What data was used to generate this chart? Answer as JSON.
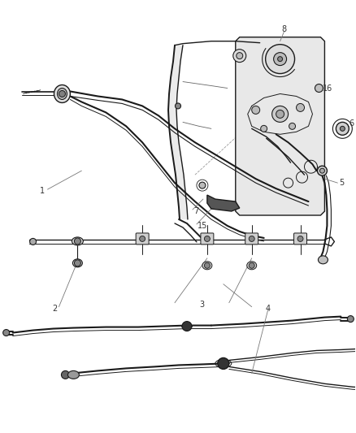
{
  "bg_color": "#ffffff",
  "line_color": "#1a1a1a",
  "label_color": "#333333",
  "lw_cable": 1.5,
  "lw_thin": 0.7,
  "lw_med": 1.0,
  "lw_thick": 1.4,
  "font_size": 7.0
}
